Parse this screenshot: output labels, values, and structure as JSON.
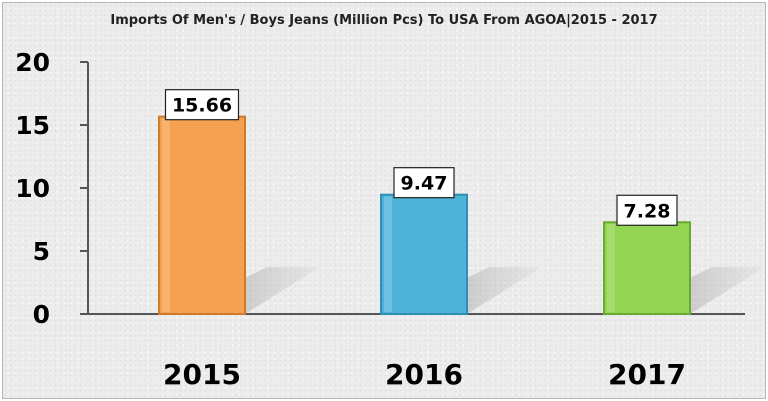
{
  "chart_data": {
    "type": "bar",
    "title": "Imports Of Men's / Boys Jeans (Million Pcs) To USA From AGOA|2015 - 2017",
    "categories": [
      "2015",
      "2016",
      "2017"
    ],
    "values": [
      15.66,
      9.47,
      7.28
    ],
    "value_labels": [
      "15.66",
      "9.47",
      "7.28"
    ],
    "yticks": [
      "0",
      "5",
      "10",
      "15",
      "20"
    ],
    "ylim": [
      0,
      20
    ],
    "xlabel": "",
    "ylabel": "",
    "grid": false,
    "legend": "none",
    "bar_colors": [
      "#f6a14f",
      "#4db3d9",
      "#93d451"
    ],
    "bar_edge_colors": [
      "#d07b2b",
      "#2f8fb3",
      "#6aaa2f"
    ]
  }
}
